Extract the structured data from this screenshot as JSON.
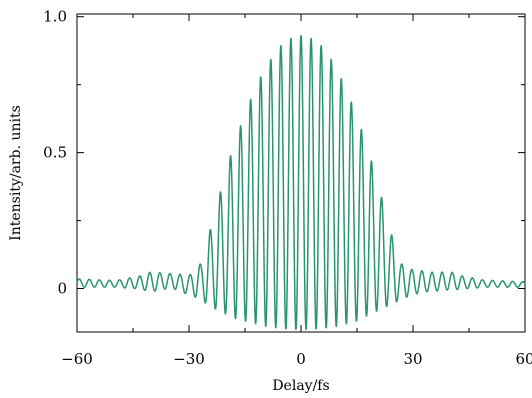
{
  "chart_data": {
    "type": "line",
    "title": "",
    "xlabel": "Delay/fs",
    "ylabel": "Intensity/arb. units",
    "xlim": [
      -60,
      60
    ],
    "ylim": [
      -0.16,
      1.01
    ],
    "x_ticks": [
      -60,
      -30,
      0,
      30,
      60
    ],
    "x_tick_labels": [
      "−60",
      "−30",
      "0",
      "30",
      "60"
    ],
    "y_ticks": [
      0,
      0.5,
      1.0
    ],
    "y_tick_labels": [
      "0",
      "0.5",
      "1.0"
    ],
    "grid": false,
    "legend": "none",
    "series": [
      {
        "color": "#2a9470",
        "oscillation_period_fs": 2.7,
        "center_peak": 0.93,
        "center_trough": -0.15,
        "upper_envelope": {
          "x": [
            -60,
            -50,
            -45,
            -40,
            -35,
            -30,
            -27,
            -24,
            -21,
            -18,
            -15,
            -12,
            -9,
            -6,
            -3,
            0,
            3,
            6,
            9,
            12,
            15,
            18,
            21,
            24,
            27,
            30,
            35,
            40,
            45,
            50,
            60
          ],
          "y": [
            0.035,
            0.03,
            0.04,
            0.06,
            0.055,
            0.05,
            0.09,
            0.22,
            0.37,
            0.52,
            0.64,
            0.75,
            0.83,
            0.89,
            0.92,
            0.93,
            0.92,
            0.89,
            0.83,
            0.74,
            0.63,
            0.5,
            0.35,
            0.2,
            0.09,
            0.07,
            0.06,
            0.06,
            0.04,
            0.03,
            0.025
          ]
        },
        "lower_envelope": {
          "x": [
            -60,
            -50,
            -45,
            -40,
            -35,
            -30,
            -27,
            -24,
            -21,
            -18,
            -15,
            -12,
            -9,
            -6,
            -3,
            0,
            3,
            6,
            9,
            12,
            15,
            18,
            21,
            24,
            27,
            30,
            35,
            40,
            45,
            50,
            60
          ],
          "y": [
            0.005,
            0.005,
            0.0,
            -0.01,
            0.0,
            -0.02,
            -0.04,
            -0.07,
            -0.09,
            -0.11,
            -0.12,
            -0.13,
            -0.14,
            -0.145,
            -0.15,
            -0.15,
            -0.15,
            -0.145,
            -0.14,
            -0.13,
            -0.12,
            -0.1,
            -0.08,
            -0.06,
            -0.04,
            -0.02,
            -0.01,
            -0.005,
            0.0,
            0.005,
            0.005
          ]
        }
      }
    ]
  }
}
